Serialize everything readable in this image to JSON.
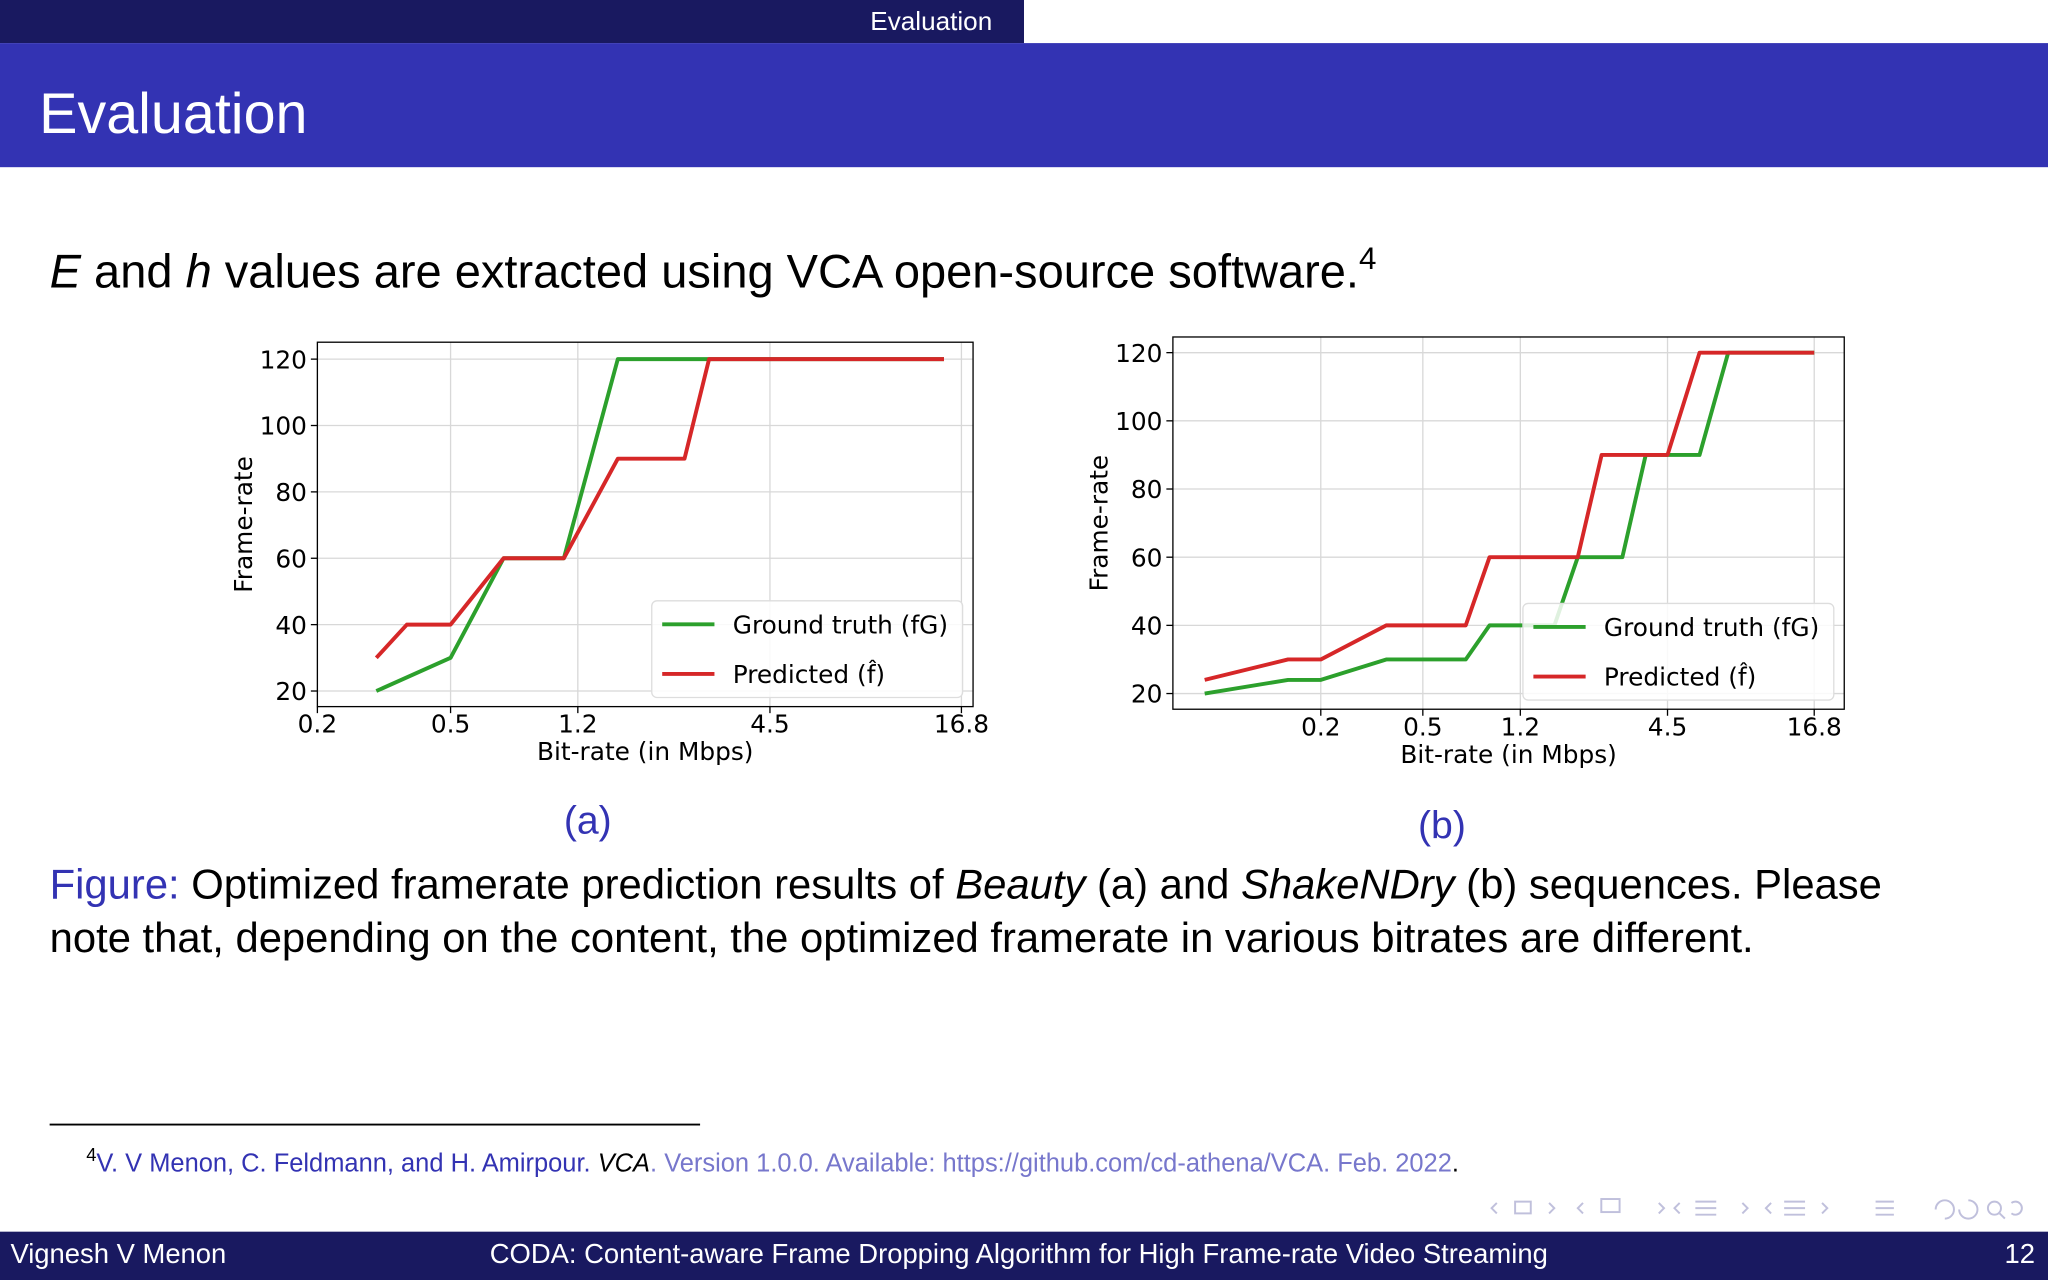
{
  "header": {
    "section": "Evaluation",
    "title": "Evaluation"
  },
  "intro": {
    "parts": [
      "E",
      " and ",
      "h",
      " values are extracted using VCA open-source software."
    ],
    "footnote_mark": "4"
  },
  "chart_data": [
    {
      "type": "line",
      "xlabel": "Bit-rate (in Mbps)",
      "ylabel": "Frame-rate",
      "xscale": "log",
      "xlim": [
        0.2,
        18.2
      ],
      "xticks": [
        0.2,
        0.5,
        1.2,
        4.5,
        16.8
      ],
      "ylim": [
        15.3,
        125.1
      ],
      "yticks": [
        20,
        40,
        60,
        80,
        100,
        120
      ],
      "grid": true,
      "legend": "lower right",
      "series": [
        {
          "name": "Ground truth (fG)",
          "color": "#2ca02c",
          "x": [
            0.3,
            0.5,
            0.72,
            1.09,
            1.58,
            2.96,
            14.9
          ],
          "values": [
            20,
            30,
            60,
            60,
            120,
            120,
            120
          ]
        },
        {
          "name": "Predicted (f̂)",
          "color": "#d62728",
          "x": [
            0.3,
            0.37,
            0.5,
            0.72,
            1.09,
            1.58,
            2.5,
            2.96,
            14.9
          ],
          "values": [
            30,
            40,
            40,
            60,
            60,
            90,
            90,
            120,
            120
          ]
        }
      ],
      "label": "(a)"
    },
    {
      "type": "line",
      "xlabel": "Bit-rate (in Mbps)",
      "ylabel": "Frame-rate",
      "xscale": "log",
      "xlim": [
        0.053,
        22.0
      ],
      "xticks": [
        0.2,
        0.5,
        1.2,
        4.5,
        16.8
      ],
      "ylim": [
        15.4,
        124.6
      ],
      "yticks": [
        20,
        40,
        60,
        80,
        100,
        120
      ],
      "grid": true,
      "legend": "lower right",
      "series": [
        {
          "name": "Ground truth (fG)",
          "color": "#2ca02c",
          "x": [
            0.0705,
            0.149,
            0.2,
            0.36,
            0.735,
            0.91,
            1.63,
            2.01,
            3.0,
            3.7,
            6.0,
            7.76,
            16.8
          ],
          "values": [
            20,
            24,
            24,
            30,
            30,
            40,
            40,
            60,
            60,
            90,
            90,
            120,
            120
          ]
        },
        {
          "name": "Predicted (f̂)",
          "color": "#d62728",
          "x": [
            0.0705,
            0.149,
            0.2,
            0.36,
            0.735,
            0.91,
            2.01,
            2.49,
            4.5,
            6.0,
            16.8
          ],
          "values": [
            24,
            30,
            30,
            40,
            40,
            60,
            60,
            90,
            90,
            120,
            120
          ]
        }
      ],
      "label": "(b)"
    }
  ],
  "caption": {
    "label": "Figure:",
    "line1": [
      " Optimized framerate prediction results of ",
      "Beauty",
      " (a) and ",
      "ShakeNDry",
      " (b) sequences. Please"
    ],
    "line2": "note that, depending on the content, the optimized framerate in various bitrates are different."
  },
  "footnote": {
    "mark": "4",
    "authors": "V. V Menon, C. Feldmann, and H. Amirpour.",
    "title": "VCA",
    "details": ". Version 1.0.0. Available: https://github.com/cd-athena/VCA. Feb. 2022",
    "end": "."
  },
  "footer": {
    "author": "Vignesh V Menon",
    "title": "CODA: Content-aware Frame Dropping Algorithm for High Frame-rate Video Streaming",
    "page": "12"
  }
}
